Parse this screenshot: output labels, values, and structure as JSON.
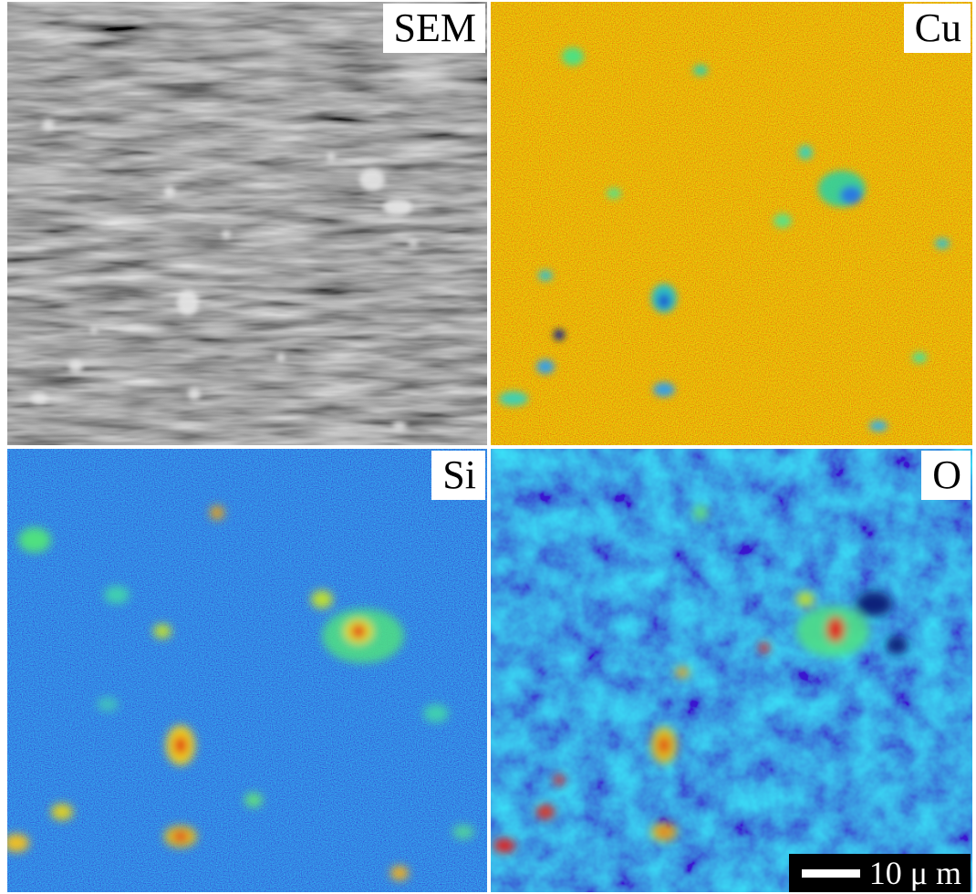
{
  "panels": [
    {
      "label": "SEM",
      "palette": "gray"
    },
    {
      "label": "Cu",
      "palette": "jet-high"
    },
    {
      "label": "Si",
      "palette": "jet-low"
    },
    {
      "label": "O",
      "palette": "jet-low"
    }
  ],
  "scale_bar": {
    "text": "10 μ m"
  },
  "colors": {
    "background": "#ffffff",
    "sem_base": "#1e1e1e",
    "cu_base": "#f0a020",
    "si_base": "#1a3fd0",
    "o_base": "#2a6ad8",
    "hotspot": "#e01010"
  }
}
